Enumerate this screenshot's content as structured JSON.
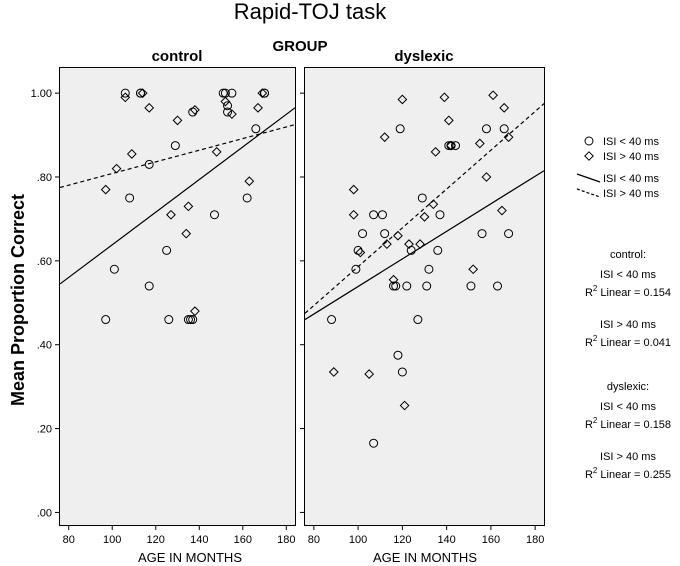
{
  "chart_data": {
    "type": "scatter",
    "title": "Rapid-TOJ task",
    "facet_title": "GROUP",
    "xlabel": "AGE IN MONTHS",
    "ylabel": "Mean Proportion Correct",
    "xlim": [
      76,
      184
    ],
    "ylim": [
      -0.03,
      1.06
    ],
    "x_ticks": [
      80,
      100,
      120,
      140,
      160,
      180
    ],
    "x_tick_labels": [
      "80",
      "100",
      "120",
      "140",
      "160",
      "180"
    ],
    "y_ticks": [
      0,
      0.2,
      0.4,
      0.6,
      0.8,
      1.0
    ],
    "y_tick_labels": [
      ".00",
      ".20",
      ".40",
      ".60",
      ".80",
      "1.00"
    ],
    "legend": [
      {
        "label": "ISI < 40 ms",
        "kind": "circle"
      },
      {
        "label": "ISI > 40 ms",
        "kind": "diamond"
      },
      {
        "label": "ISI < 40 ms",
        "kind": "solid-line"
      },
      {
        "label": "ISI > 40 ms",
        "kind": "dashed-line"
      }
    ],
    "stats": [
      {
        "group_label": "control:",
        "entries": [
          {
            "label": "ISI < 40 ms",
            "r2_prefix": "R",
            "r2_sup": "2",
            "r2_suffix": " Linear = 0.154"
          },
          {
            "label": "ISI > 40 ms",
            "r2_prefix": "R",
            "r2_sup": "2",
            "r2_suffix": " Linear = 0.041"
          }
        ]
      },
      {
        "group_label": "dyslexic:",
        "entries": [
          {
            "label": "ISI < 40 ms",
            "r2_prefix": "R",
            "r2_sup": "2",
            "r2_suffix": " Linear = 0.158"
          },
          {
            "label": "ISI > 40 ms",
            "r2_prefix": "R",
            "r2_sup": "2",
            "r2_suffix": " Linear = 0.255"
          }
        ]
      }
    ],
    "panels": [
      {
        "name": "control",
        "fit_lines": {
          "isi_lt_40": {
            "style": "solid",
            "x": [
              76,
              184
            ],
            "y": [
              0.545,
              0.965
            ]
          },
          "isi_gt_40": {
            "style": "dashed",
            "x": [
              76,
              184
            ],
            "y": [
              0.775,
              0.925
            ]
          }
        },
        "series": [
          {
            "name": "ISI < 40 ms",
            "marker": "circle",
            "x": [
              97,
              101,
              106,
              108,
              113,
              113,
              117,
              117,
              125,
              126,
              129,
              135,
              136,
              137,
              137,
              147,
              151,
              152,
              153,
              153,
              155,
              162,
              166,
              170,
              170
            ],
            "y": [
              0.46,
              0.58,
              1.0,
              0.75,
              1.0,
              1.0,
              0.83,
              0.54,
              0.625,
              0.46,
              0.875,
              0.46,
              0.46,
              0.955,
              0.46,
              0.71,
              1.0,
              1.0,
              0.955,
              0.97,
              1.0,
              0.75,
              0.915,
              1.0,
              1.0
            ]
          },
          {
            "name": "ISI > 40 ms",
            "marker": "diamond",
            "x": [
              97,
              102,
              106,
              109,
              114,
              117,
              127,
              130,
              134,
              135,
              138,
              138,
              148,
              152,
              155,
              163,
              167,
              169
            ],
            "y": [
              0.77,
              0.82,
              0.99,
              0.855,
              1.0,
              0.965,
              0.71,
              0.935,
              0.665,
              0.73,
              0.96,
              0.48,
              0.86,
              0.98,
              0.95,
              0.79,
              0.965,
              1.0
            ]
          }
        ]
      },
      {
        "name": "dyslexic",
        "fit_lines": {
          "isi_lt_40": {
            "style": "solid",
            "x": [
              76,
              184
            ],
            "y": [
              0.46,
              0.815
            ]
          },
          "isi_gt_40": {
            "style": "dashed",
            "x": [
              76,
              184
            ],
            "y": [
              0.475,
              0.975
            ]
          }
        },
        "series": [
          {
            "name": "ISI < 40 ms",
            "marker": "circle",
            "x": [
              88,
              99,
              100,
              102,
              107,
              107,
              111,
              112,
              116,
              117,
              118,
              119,
              120,
              122,
              124,
              127,
              129,
              131,
              132,
              136,
              137,
              141,
              142,
              144,
              151,
              156,
              158,
              163,
              166,
              168
            ],
            "y": [
              0.46,
              0.58,
              0.625,
              0.665,
              0.71,
              0.165,
              0.71,
              0.665,
              0.54,
              0.54,
              0.375,
              0.915,
              0.335,
              0.54,
              0.625,
              0.46,
              0.75,
              0.54,
              0.58,
              0.625,
              0.71,
              0.875,
              0.875,
              0.875,
              0.54,
              0.665,
              0.915,
              0.54,
              0.915,
              0.665
            ]
          },
          {
            "name": "ISI > 40 ms",
            "marker": "diamond",
            "x": [
              89,
              98,
              98,
              101,
              105,
              112,
              113,
              116,
              118,
              120,
              121,
              123,
              128,
              130,
              134,
              135,
              139,
              141,
              142,
              152,
              155,
              158,
              161,
              165,
              166,
              168
            ],
            "y": [
              0.335,
              0.71,
              0.77,
              0.62,
              0.33,
              0.895,
              0.64,
              0.555,
              0.66,
              0.985,
              0.255,
              0.64,
              0.64,
              0.705,
              0.735,
              0.86,
              0.99,
              0.935,
              0.875,
              0.58,
              0.88,
              0.8,
              0.995,
              0.72,
              0.965,
              0.895
            ]
          }
        ]
      }
    ]
  }
}
